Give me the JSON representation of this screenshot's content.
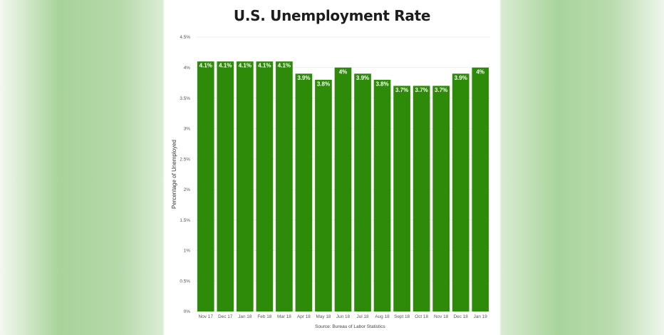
{
  "colors": {
    "bar": "#2e8b0a",
    "grid": "#e6e6e6",
    "label": "#ffffff"
  },
  "chart_data": {
    "type": "bar",
    "title": "U.S. Unemployment Rate",
    "ylabel": "Percentage of Unemployed",
    "xlabel": "",
    "source": "Source: Bureau of Labor Statistics",
    "categories": [
      "Nov 17",
      "Dec 17",
      "Jan 18",
      "Feb 18",
      "Mar 18",
      "Apr 18",
      "May 18",
      "Jun 18",
      "Jul 18",
      "Aug 18",
      "Sept 18",
      "Oct 18",
      "Nov 18",
      "Dec 18",
      "Jan 19"
    ],
    "values": [
      4.1,
      4.1,
      4.1,
      4.1,
      4.1,
      3.9,
      3.8,
      4.0,
      3.9,
      3.8,
      3.7,
      3.7,
      3.7,
      3.9,
      4.0
    ],
    "value_labels": [
      "4.1%",
      "4.1%",
      "4.1%",
      "4.1%",
      "4.1%",
      "3.9%",
      "3.8%",
      "4%",
      "3.9%",
      "3.8%",
      "3.7%",
      "3.7%",
      "3.7%",
      "3.9%",
      "4%"
    ],
    "ylim": [
      0,
      4.5
    ],
    "yticks": [
      0,
      0.5,
      1,
      1.5,
      2,
      2.5,
      3,
      3.5,
      4,
      4.5
    ],
    "ytick_labels": [
      "0%",
      "0.5%",
      "1%",
      "1.5%",
      "2%",
      "2.5%",
      "3%",
      "3.5%",
      "4%",
      "4.5%"
    ],
    "grid": true,
    "legend": "none"
  }
}
